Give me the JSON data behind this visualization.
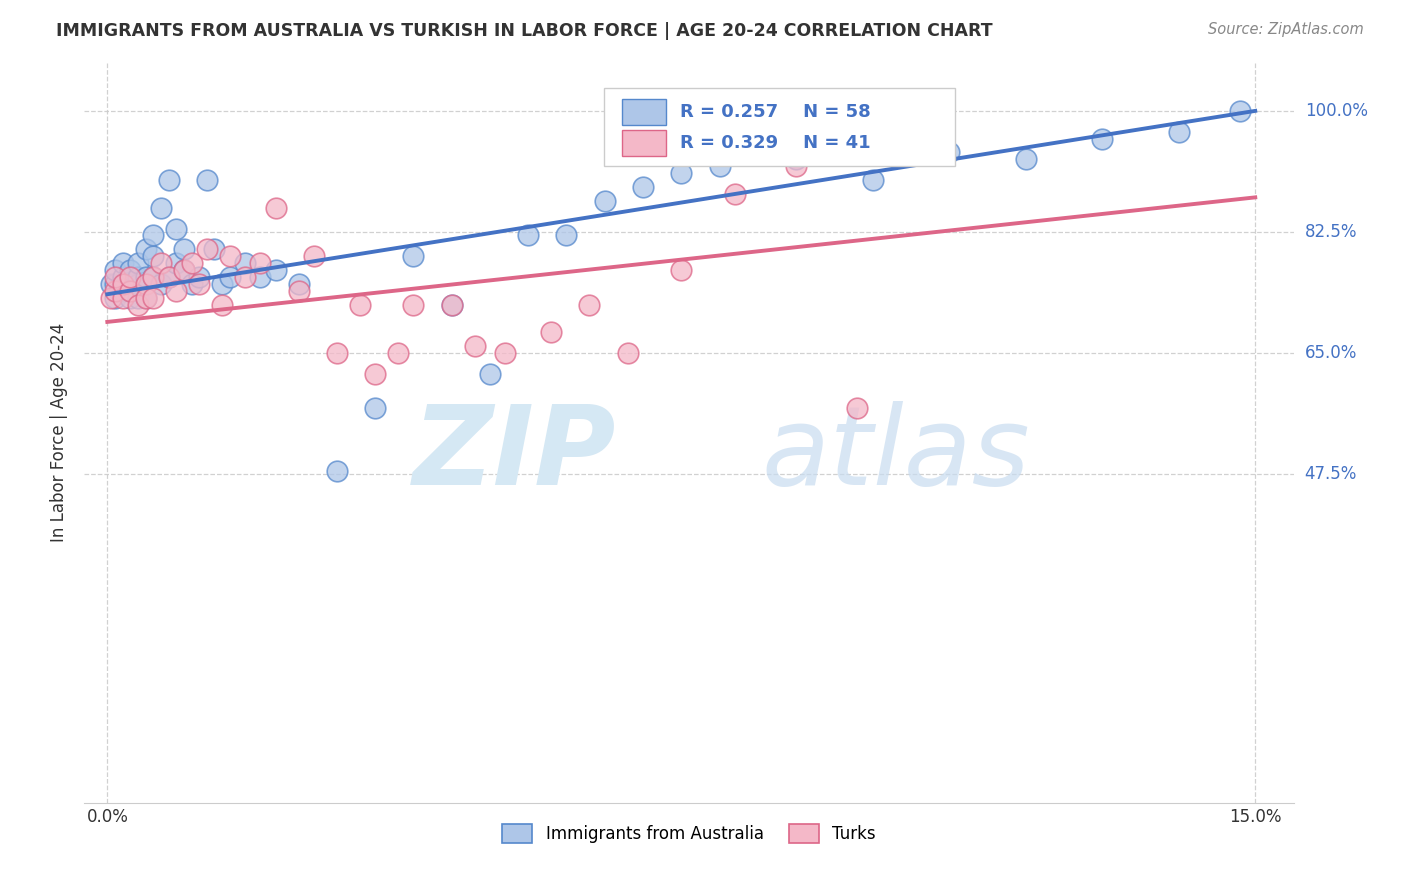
{
  "title": "IMMIGRANTS FROM AUSTRALIA VS TURKISH IN LABOR FORCE | AGE 20-24 CORRELATION CHART",
  "source": "Source: ZipAtlas.com",
  "ylabel": "In Labor Force | Age 20-24",
  "yticks_labels": [
    "100.0%",
    "82.5%",
    "65.0%",
    "47.5%"
  ],
  "ytick_vals": [
    1.0,
    0.825,
    0.65,
    0.475
  ],
  "xlim": [
    0.0,
    0.15
  ],
  "ylim": [
    0.0,
    1.07
  ],
  "legend_r1": "R = 0.257",
  "legend_n1": "N = 58",
  "legend_r2": "R = 0.329",
  "legend_n2": "N = 41",
  "blue_fill": "#AEC6E8",
  "blue_edge": "#5588CC",
  "pink_fill": "#F4B8C8",
  "pink_edge": "#DD6688",
  "line_blue": "#4472C4",
  "line_pink": "#DD6688",
  "blue_x": [
    0.0005,
    0.001,
    0.001,
    0.001,
    0.0015,
    0.002,
    0.002,
    0.002,
    0.003,
    0.003,
    0.003,
    0.003,
    0.004,
    0.004,
    0.004,
    0.004,
    0.005,
    0.005,
    0.005,
    0.006,
    0.006,
    0.006,
    0.007,
    0.007,
    0.008,
    0.008,
    0.009,
    0.009,
    0.01,
    0.01,
    0.011,
    0.012,
    0.013,
    0.014,
    0.015,
    0.016,
    0.018,
    0.02,
    0.022,
    0.025,
    0.03,
    0.035,
    0.04,
    0.045,
    0.05,
    0.055,
    0.06,
    0.065,
    0.07,
    0.075,
    0.08,
    0.09,
    0.1,
    0.11,
    0.12,
    0.13,
    0.14,
    0.148
  ],
  "blue_y": [
    0.75,
    0.75,
    0.73,
    0.77,
    0.74,
    0.74,
    0.76,
    0.78,
    0.75,
    0.73,
    0.77,
    0.74,
    0.75,
    0.73,
    0.76,
    0.78,
    0.8,
    0.76,
    0.73,
    0.79,
    0.76,
    0.82,
    0.75,
    0.86,
    0.9,
    0.76,
    0.83,
    0.78,
    0.77,
    0.8,
    0.75,
    0.76,
    0.9,
    0.8,
    0.75,
    0.76,
    0.78,
    0.76,
    0.77,
    0.75,
    0.48,
    0.57,
    0.79,
    0.72,
    0.62,
    0.82,
    0.82,
    0.87,
    0.89,
    0.91,
    0.92,
    0.93,
    0.9,
    0.94,
    0.93,
    0.96,
    0.97,
    1.0
  ],
  "pink_x": [
    0.0005,
    0.001,
    0.001,
    0.002,
    0.002,
    0.003,
    0.003,
    0.004,
    0.005,
    0.005,
    0.006,
    0.006,
    0.007,
    0.008,
    0.009,
    0.01,
    0.011,
    0.012,
    0.013,
    0.015,
    0.016,
    0.018,
    0.02,
    0.022,
    0.025,
    0.027,
    0.03,
    0.033,
    0.035,
    0.038,
    0.04,
    0.045,
    0.048,
    0.052,
    0.058,
    0.063,
    0.068,
    0.075,
    0.082,
    0.09,
    0.098
  ],
  "pink_y": [
    0.73,
    0.74,
    0.76,
    0.73,
    0.75,
    0.74,
    0.76,
    0.72,
    0.75,
    0.73,
    0.76,
    0.73,
    0.78,
    0.76,
    0.74,
    0.77,
    0.78,
    0.75,
    0.8,
    0.72,
    0.79,
    0.76,
    0.78,
    0.86,
    0.74,
    0.79,
    0.65,
    0.72,
    0.62,
    0.65,
    0.72,
    0.72,
    0.66,
    0.65,
    0.68,
    0.72,
    0.65,
    0.77,
    0.88,
    0.92,
    0.57
  ],
  "blue_line_y0": 0.735,
  "blue_line_y1": 1.0,
  "pink_line_y0": 0.695,
  "pink_line_y1": 0.875
}
